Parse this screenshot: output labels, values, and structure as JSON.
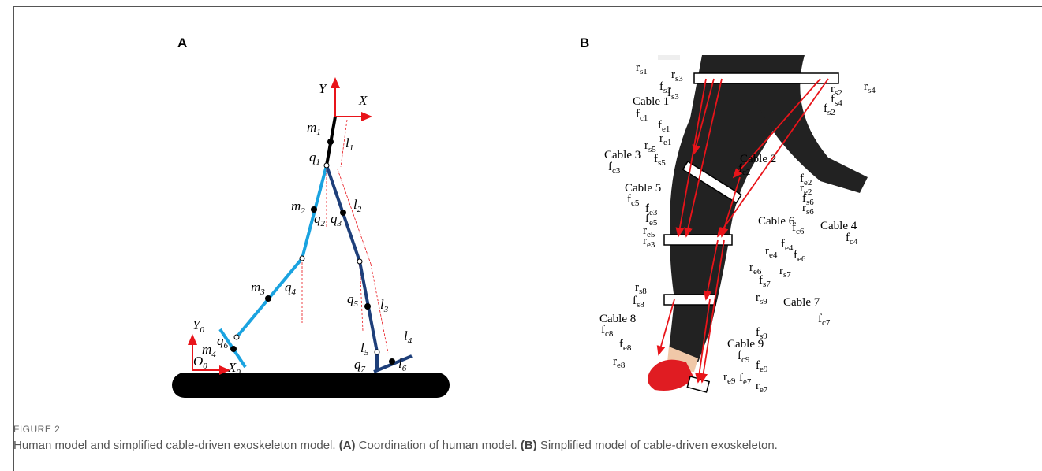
{
  "figure": {
    "panel_a": {
      "tag": "A",
      "labels": [
        {
          "base": "Y"
        },
        {
          "base": "X"
        },
        {
          "base": "m",
          "sub": "1"
        },
        {
          "base": "l",
          "sub": "1"
        },
        {
          "base": "q",
          "sub": "1"
        },
        {
          "base": "m",
          "sub": "2"
        },
        {
          "base": "l",
          "sub": "2"
        },
        {
          "base": "q",
          "sub": "2"
        },
        {
          "base": "q",
          "sub": "3"
        },
        {
          "base": "m",
          "sub": "3"
        },
        {
          "base": "q",
          "sub": "4"
        },
        {
          "base": "q",
          "sub": "5"
        },
        {
          "base": "l",
          "sub": "3"
        },
        {
          "base": "Y",
          "sub": "0"
        },
        {
          "base": "m",
          "sub": "4"
        },
        {
          "base": "q",
          "sub": "6"
        },
        {
          "base": "X",
          "sub": "0"
        },
        {
          "base": "O",
          "sub": "0"
        },
        {
          "base": "l",
          "sub": "5"
        },
        {
          "base": "l",
          "sub": "4"
        },
        {
          "base": "q",
          "sub": "7"
        },
        {
          "base": "l",
          "sub": "6"
        }
      ]
    },
    "panel_b": {
      "tag": "B",
      "labels": [
        {
          "base": "r",
          "sub": "s1"
        },
        {
          "base": "r",
          "sub": "s3"
        },
        {
          "base": "f",
          "sub": "s1"
        },
        {
          "base": "f",
          "sub": "s3"
        },
        {
          "base": "Cable 1"
        },
        {
          "base": "f",
          "sub": "c1"
        },
        {
          "base": "f",
          "sub": "e1"
        },
        {
          "base": "r",
          "sub": "e1"
        },
        {
          "base": "r",
          "sub": "s5"
        },
        {
          "base": "Cable 3"
        },
        {
          "base": "f",
          "sub": "s5"
        },
        {
          "base": "f",
          "sub": "c3"
        },
        {
          "base": "Cable 2"
        },
        {
          "base": "f",
          "sub": "c2"
        },
        {
          "base": "f",
          "sub": "e2"
        },
        {
          "base": "r",
          "sub": "e2"
        },
        {
          "base": "f",
          "sub": "s6"
        },
        {
          "base": "r",
          "sub": "s6"
        },
        {
          "base": "Cable 5"
        },
        {
          "base": "f",
          "sub": "c5"
        },
        {
          "base": "f",
          "sub": "e3"
        },
        {
          "base": "f",
          "sub": "e5"
        },
        {
          "base": "Cable 6"
        },
        {
          "base": "f",
          "sub": "c6"
        },
        {
          "base": "Cable 4"
        },
        {
          "base": "f",
          "sub": "c4"
        },
        {
          "base": "r",
          "sub": "e5"
        },
        {
          "base": "r",
          "sub": "e3"
        },
        {
          "base": "f",
          "sub": "e4"
        },
        {
          "base": "f",
          "sub": "e6"
        },
        {
          "base": "r",
          "sub": "e4"
        },
        {
          "base": "r",
          "sub": "e6"
        },
        {
          "base": "r",
          "sub": "s7"
        },
        {
          "base": "f",
          "sub": "s7"
        },
        {
          "base": "r",
          "sub": "s8"
        },
        {
          "base": "f",
          "sub": "s8"
        },
        {
          "base": "r",
          "sub": "s9"
        },
        {
          "base": "Cable 7"
        },
        {
          "base": "f",
          "sub": "c7"
        },
        {
          "base": "Cable 8"
        },
        {
          "base": "f",
          "sub": "c8"
        },
        {
          "base": "f",
          "sub": "s9"
        },
        {
          "base": "f",
          "sub": "e8"
        },
        {
          "base": "r",
          "sub": "e8"
        },
        {
          "base": "Cable 9"
        },
        {
          "base": "f",
          "sub": "c9"
        },
        {
          "base": "f",
          "sub": "e9"
        },
        {
          "base": "f",
          "sub": "e7"
        },
        {
          "base": "r",
          "sub": "e9"
        },
        {
          "base": "r",
          "sub": "e7"
        },
        {
          "base": "r",
          "sub": "s2"
        },
        {
          "base": "r",
          "sub": "s4"
        },
        {
          "base": "f",
          "sub": "s4"
        },
        {
          "base": "f",
          "sub": "s2"
        }
      ]
    },
    "caption": {
      "label": "FIGURE 2",
      "lead": "Human model and simplified cable-driven exoskeleton model.",
      "a_tag": "(A)",
      "a_text": "Coordination of human model.",
      "b_tag": "(B)",
      "b_text": "Simplified model of cable-driven exoskeleton."
    }
  }
}
